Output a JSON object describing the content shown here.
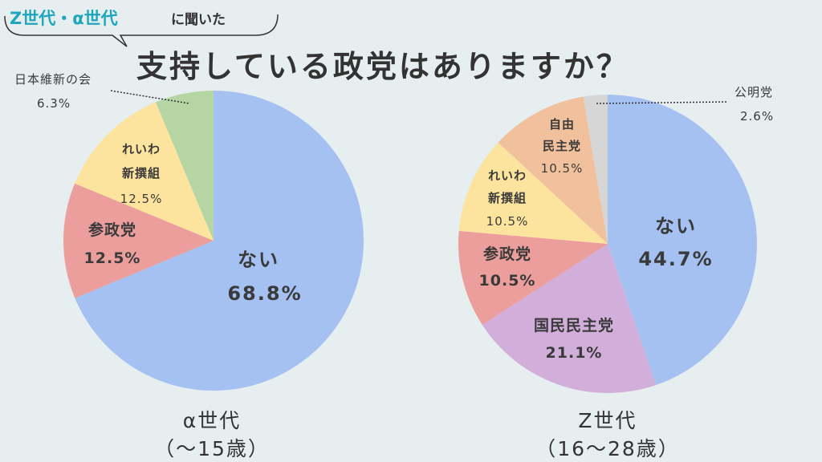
{
  "header": {
    "tag_gens": "Z世代・α世代",
    "tag_rest": "に聞いた",
    "title": "支持している政党はありますか？"
  },
  "chart_data": [
    {
      "type": "pie",
      "caption_line1": "α世代",
      "caption_line2": "（〜15歳）",
      "start": "top",
      "direction": "clockwise",
      "slices": [
        {
          "label": "ない",
          "value": 68.8,
          "value_label": "68.8%",
          "color": "#a5c1f2"
        },
        {
          "label": "参政党",
          "value": 12.5,
          "value_label": "12.5%",
          "color": "#eb9e9c"
        },
        {
          "label": "れいわ新撰組",
          "label_lines": [
            "れいわ",
            "新撰組"
          ],
          "value": 12.5,
          "value_label": "12.5%",
          "color": "#fde49e"
        },
        {
          "label": "日本維新の会",
          "value": 6.3,
          "value_label": "6.3%",
          "color": "#b5d5a3"
        }
      ]
    },
    {
      "type": "pie",
      "caption_line1": "Z世代",
      "caption_line2": "（16〜28歳）",
      "start": "top",
      "direction": "clockwise",
      "slices": [
        {
          "label": "ない",
          "value": 44.7,
          "value_label": "44.7%",
          "color": "#a5c1f2"
        },
        {
          "label": "国民民主党",
          "value": 21.1,
          "value_label": "21.1%",
          "color": "#d2aedb"
        },
        {
          "label": "参政党",
          "value": 10.5,
          "value_label": "10.5%",
          "color": "#eb9e9c"
        },
        {
          "label": "れいわ新撰組",
          "label_lines": [
            "れいわ",
            "新撰組"
          ],
          "value": 10.5,
          "value_label": "10.5%",
          "color": "#fde49e"
        },
        {
          "label": "自由民主党",
          "label_lines": [
            "自由",
            "民主党"
          ],
          "value": 10.5,
          "value_label": "10.5%",
          "color": "#f0c19c"
        },
        {
          "label": "公明党",
          "value": 2.6,
          "value_label": "2.6%",
          "color": "#d6d6d6"
        }
      ]
    }
  ]
}
